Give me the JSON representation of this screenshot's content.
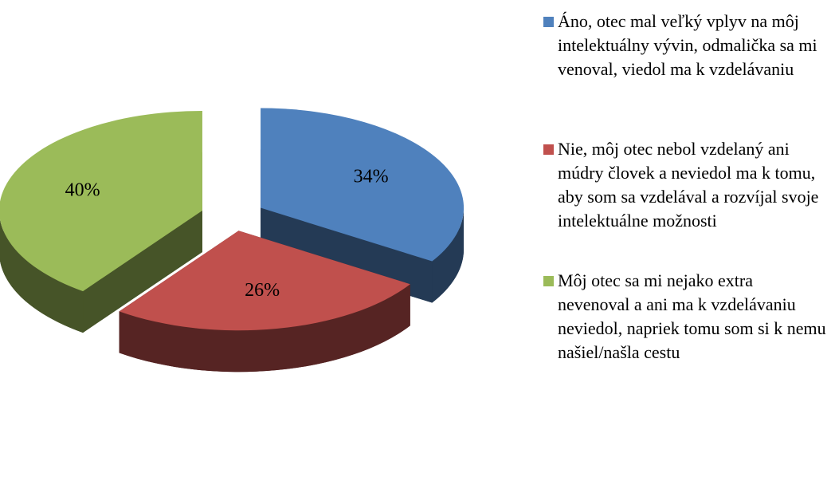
{
  "chart_data": {
    "type": "pie",
    "categories": [
      "Áno, otec mal veľký vplyv na môj intelektuálny vývin, odmalička sa mi venoval, viedol ma k vzdelávaniu",
      "Nie, môj otec nebol vzdelaný ani múdry človek a neviedol ma k tomu, aby som sa vzdelával a rozvíjal svoje intelektuálne možnosti",
      "Môj otec sa mi nejako extra nevenoval a ani ma k vzdelávaniu neviedol, napriek tomu som si k nemu našiel/našla cestu"
    ],
    "values": [
      34,
      26,
      40
    ],
    "value_labels": [
      "34%",
      "26%",
      "40%"
    ],
    "colors": [
      "#4f81bd",
      "#c0504d",
      "#9bbb59"
    ],
    "legend": "right"
  }
}
